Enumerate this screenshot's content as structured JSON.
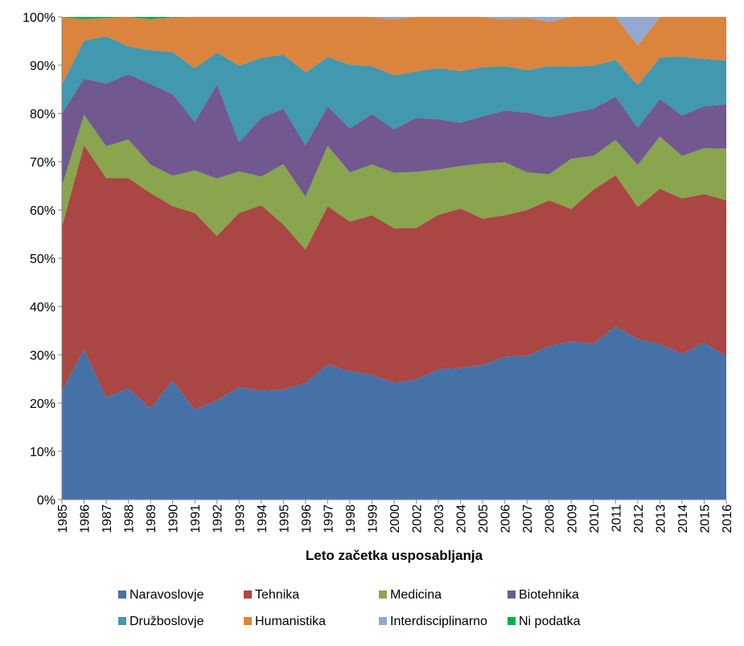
{
  "chart_data": {
    "type": "area",
    "stacked": "percent",
    "xlabel": "Leto začetka usposabljanja",
    "ylabel": "",
    "ylim": [
      0,
      100
    ],
    "yticks": [
      "0%",
      "10%",
      "20%",
      "30%",
      "40%",
      "50%",
      "60%",
      "70%",
      "80%",
      "90%",
      "100%"
    ],
    "grid": false,
    "legend_position": "bottom",
    "categories": [
      "1985",
      "1986",
      "1987",
      "1988",
      "1989",
      "1990",
      "1991",
      "1992",
      "1993",
      "1994",
      "1995",
      "1996",
      "1997",
      "1998",
      "1999",
      "2000",
      "2002",
      "2003",
      "2004",
      "2005",
      "2006",
      "2007",
      "2008",
      "2009",
      "2010",
      "2011",
      "2012",
      "2013",
      "2014",
      "2015",
      "2016"
    ],
    "series": [
      {
        "name": "Naravoslovje",
        "color": "#4672A8",
        "values": [
          22.5,
          31.2,
          21.1,
          23.1,
          18.9,
          24.7,
          18.6,
          20.6,
          23.3,
          22.6,
          22.8,
          24.2,
          28.0,
          26.6,
          25.9,
          24.2,
          24.9,
          27.0,
          27.3,
          27.9,
          29.6,
          29.8,
          31.8,
          32.8,
          32.3,
          35.9,
          33.2,
          32.2,
          30.2,
          32.5,
          29.7
        ]
      },
      {
        "name": "Tehnika",
        "color": "#AA4643",
        "values": [
          34.0,
          42.2,
          45.5,
          43.5,
          44.6,
          36.1,
          40.8,
          34.0,
          36.1,
          38.4,
          34.2,
          27.6,
          32.8,
          31.0,
          33.0,
          32.0,
          31.4,
          32.0,
          33.0,
          30.3,
          29.3,
          30.2,
          30.2,
          27.4,
          31.9,
          31.3,
          27.3,
          32.2,
          32.2,
          30.8,
          32.3
        ]
      },
      {
        "name": "Medicina",
        "color": "#89A54E",
        "values": [
          8.5,
          6.3,
          6.6,
          8.0,
          5.9,
          6.3,
          8.8,
          11.9,
          8.6,
          5.9,
          12.5,
          10.9,
          12.5,
          10.2,
          10.5,
          11.5,
          11.6,
          9.4,
          8.8,
          11.4,
          11.0,
          7.8,
          5.4,
          10.4,
          7.0,
          7.3,
          8.7,
          10.8,
          8.8,
          9.5,
          10.7
        ]
      },
      {
        "name": "Biotehnika",
        "color": "#71588F",
        "values": [
          15.0,
          7.5,
          13.0,
          13.5,
          16.7,
          16.9,
          10.1,
          19.5,
          6.0,
          12.2,
          11.5,
          10.7,
          8.2,
          9.1,
          10.5,
          9.0,
          11.2,
          10.4,
          9.0,
          9.8,
          10.7,
          12.4,
          11.8,
          9.5,
          9.8,
          9.0,
          7.7,
          7.8,
          8.4,
          8.7,
          9.2
        ]
      },
      {
        "name": "Družboslovje",
        "color": "#4198AF",
        "values": [
          6.0,
          7.9,
          9.8,
          5.8,
          7.0,
          8.7,
          11.1,
          6.6,
          15.9,
          12.4,
          11.2,
          15.1,
          10.2,
          13.2,
          9.9,
          11.2,
          9.6,
          10.6,
          10.7,
          10.2,
          9.2,
          8.8,
          10.6,
          9.6,
          8.9,
          7.6,
          8.8,
          8.6,
          12.2,
          9.8,
          9.1
        ]
      },
      {
        "name": "Humanistika",
        "color": "#DB843D",
        "values": [
          14.0,
          4.4,
          3.8,
          6.1,
          6.4,
          7.2,
          10.6,
          7.4,
          10.1,
          8.5,
          7.8,
          11.5,
          8.3,
          9.9,
          10.2,
          11.6,
          11.3,
          10.6,
          11.2,
          10.4,
          9.7,
          10.8,
          9.2,
          10.3,
          10.1,
          8.9,
          8.2,
          8.4,
          8.2,
          8.7,
          9.0
        ]
      },
      {
        "name": "Interdisciplinarno",
        "color": "#93A9CF",
        "values": [
          0,
          0,
          0,
          0,
          0,
          0,
          0,
          0,
          0,
          0,
          0,
          0,
          0,
          0,
          0,
          0.5,
          0,
          0,
          0,
          0,
          0.5,
          0.2,
          1.0,
          0,
          0,
          0,
          5.9,
          0,
          0,
          0,
          0
        ]
      },
      {
        "name": "Ni podatka",
        "color": "#00B050",
        "values": [
          0,
          0.5,
          0.2,
          0,
          0.5,
          0.1,
          0,
          0,
          0,
          0,
          0,
          0,
          0,
          0,
          0,
          0,
          0,
          0,
          0,
          0,
          0,
          0,
          0,
          0,
          0,
          0,
          0,
          0,
          0,
          0,
          0
        ]
      }
    ]
  }
}
